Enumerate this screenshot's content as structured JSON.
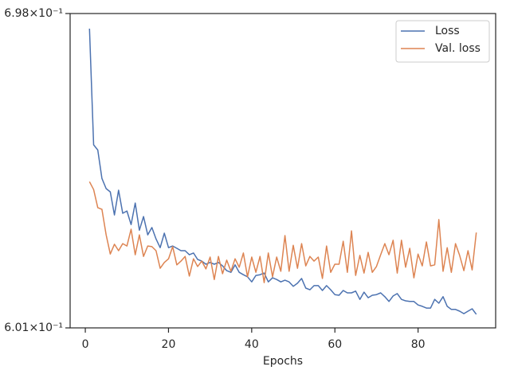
{
  "chart_data": {
    "type": "line",
    "log_scale_y": true,
    "legend": "upper right",
    "xlabel": "Epochs",
    "x": [
      1,
      2,
      3,
      4,
      5,
      6,
      7,
      8,
      9,
      10,
      11,
      12,
      13,
      14,
      15,
      16,
      17,
      18,
      19,
      20,
      21,
      22,
      23,
      24,
      25,
      26,
      27,
      28,
      29,
      30,
      31,
      32,
      33,
      34,
      35,
      36,
      37,
      38,
      39,
      40,
      41,
      42,
      43,
      44,
      45,
      46,
      47,
      48,
      49,
      50,
      51,
      52,
      53,
      54,
      55,
      56,
      57,
      58,
      59,
      60,
      61,
      62,
      63,
      64,
      65,
      66,
      67,
      68,
      69,
      70,
      71,
      72,
      73,
      74,
      75,
      76,
      77,
      78,
      79,
      80,
      81,
      82,
      83,
      84,
      85,
      86,
      87,
      88,
      89,
      90,
      91,
      92,
      93,
      94
    ],
    "xlim": [
      -3.65,
      98.65
    ],
    "xticks": [
      0,
      20,
      40,
      60,
      80
    ],
    "ylim": [
      0.601,
      0.698
    ],
    "yticks": [
      {
        "value": 0.601,
        "label": "6.01×10⁻¹"
      },
      {
        "value": 0.698,
        "label": "6.98×10⁻¹"
      }
    ],
    "series": [
      {
        "name": "Loss",
        "color": "#4c72b0",
        "values": [
          0.693,
          0.6557,
          0.6541,
          0.6453,
          0.6422,
          0.6412,
          0.6342,
          0.6417,
          0.6347,
          0.6354,
          0.6313,
          0.6378,
          0.6296,
          0.6337,
          0.6282,
          0.6304,
          0.627,
          0.6244,
          0.6287,
          0.6244,
          0.6249,
          0.6242,
          0.6235,
          0.6235,
          0.6223,
          0.6228,
          0.6209,
          0.6204,
          0.6195,
          0.62,
          0.6195,
          0.62,
          0.619,
          0.6176,
          0.6171,
          0.6193,
          0.6171,
          0.6164,
          0.6158,
          0.6143,
          0.6162,
          0.6164,
          0.6169,
          0.6143,
          0.6155,
          0.615,
          0.6143,
          0.6148,
          0.6143,
          0.613,
          0.6139,
          0.6153,
          0.6125,
          0.612,
          0.6132,
          0.6132,
          0.6118,
          0.6132,
          0.612,
          0.6106,
          0.6104,
          0.6118,
          0.6111,
          0.6111,
          0.6116,
          0.6092,
          0.6113,
          0.6097,
          0.6104,
          0.6106,
          0.6111,
          0.61,
          0.6086,
          0.6102,
          0.6109,
          0.6092,
          0.6088,
          0.6086,
          0.6086,
          0.6076,
          0.6072,
          0.6067,
          0.6067,
          0.6092,
          0.6081,
          0.61,
          0.6072,
          0.6063,
          0.6063,
          0.6058,
          0.6051,
          0.6058,
          0.6065,
          0.6049
        ]
      },
      {
        "name": "Val. loss",
        "color": "#dd8452",
        "values": [
          0.6443,
          0.6419,
          0.6364,
          0.6359,
          0.6282,
          0.6225,
          0.6254,
          0.6235,
          0.6256,
          0.6249,
          0.6299,
          0.6223,
          0.6282,
          0.6218,
          0.6249,
          0.6247,
          0.6235,
          0.6183,
          0.62,
          0.6211,
          0.6247,
          0.6193,
          0.6204,
          0.6218,
          0.616,
          0.6211,
          0.6188,
          0.6204,
          0.6181,
          0.6216,
          0.615,
          0.6218,
          0.6167,
          0.6207,
          0.6174,
          0.6211,
          0.6186,
          0.6228,
          0.6158,
          0.6216,
          0.6171,
          0.6218,
          0.6141,
          0.6228,
          0.6158,
          0.6216,
          0.6174,
          0.628,
          0.6174,
          0.6251,
          0.6183,
          0.6256,
          0.619,
          0.6218,
          0.6204,
          0.6216,
          0.6153,
          0.6249,
          0.6171,
          0.6195,
          0.6195,
          0.6263,
          0.6171,
          0.6294,
          0.6162,
          0.6221,
          0.6169,
          0.623,
          0.6171,
          0.6188,
          0.6223,
          0.6256,
          0.6223,
          0.6266,
          0.6169,
          0.6266,
          0.6186,
          0.6242,
          0.6155,
          0.6225,
          0.619,
          0.6261,
          0.619,
          0.6193,
          0.6328,
          0.6174,
          0.6244,
          0.6171,
          0.6256,
          0.6221,
          0.6176,
          0.6235,
          0.6178,
          0.6289
        ]
      }
    ]
  }
}
